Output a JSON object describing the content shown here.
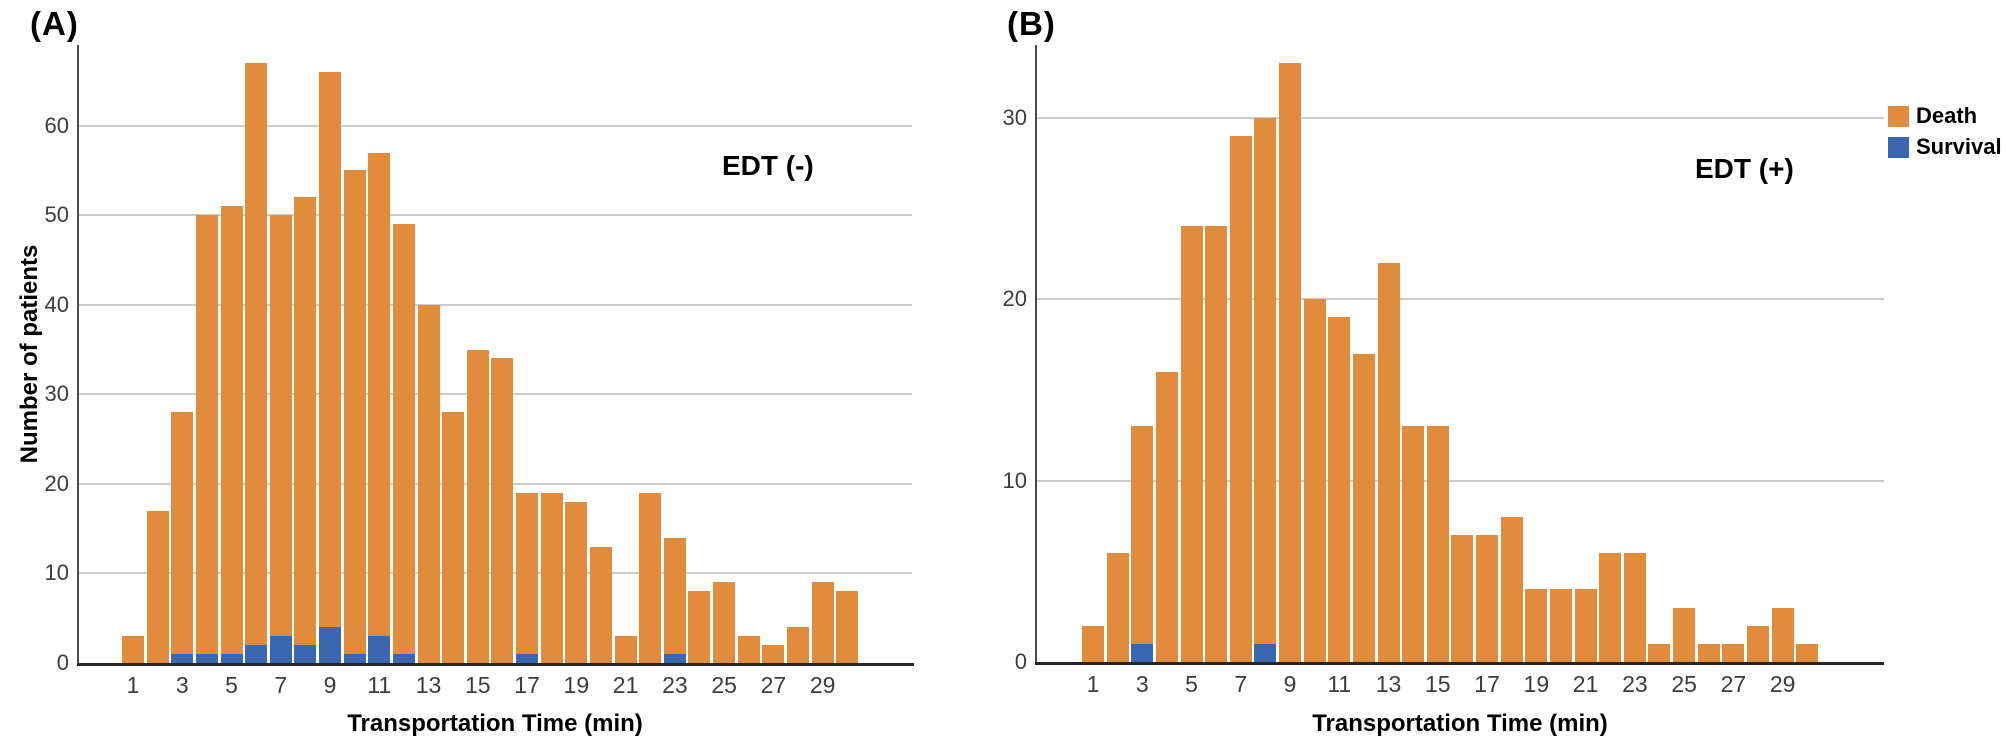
{
  "legend": {
    "items": [
      {
        "label": "Death",
        "color": "#E08C3C"
      },
      {
        "label": "Survival",
        "color": "#3B67B0"
      }
    ]
  },
  "chart_data": [
    {
      "type": "bar",
      "subtype": "stacked-histogram",
      "panel_label": "(A)",
      "annotation": "EDT (-)",
      "xlabel": "Transportation Time (min)",
      "ylabel": "Number of patients",
      "x": [
        1,
        2,
        3,
        4,
        5,
        6,
        7,
        8,
        9,
        10,
        11,
        12,
        13,
        14,
        15,
        16,
        17,
        18,
        19,
        20,
        21,
        22,
        23,
        24,
        25,
        26,
        27,
        28,
        29,
        30
      ],
      "series": [
        {
          "name": "Death",
          "color": "#E08C3C",
          "values": [
            3,
            17,
            27,
            49,
            50,
            65,
            47,
            50,
            62,
            54,
            54,
            48,
            40,
            28,
            35,
            34,
            18,
            19,
            18,
            13,
            3,
            19,
            13,
            8,
            9,
            3,
            2,
            4,
            9,
            8
          ]
        },
        {
          "name": "Survival",
          "color": "#3B67B0",
          "values": [
            0,
            0,
            1,
            1,
            1,
            2,
            3,
            2,
            4,
            1,
            3,
            1,
            0,
            0,
            0,
            0,
            1,
            0,
            0,
            0,
            0,
            0,
            1,
            0,
            0,
            0,
            0,
            0,
            0,
            0
          ]
        }
      ],
      "stacked_totals": [
        3,
        17,
        28,
        50,
        51,
        67,
        50,
        52,
        66,
        55,
        57,
        49,
        40,
        28,
        35,
        34,
        19,
        19,
        18,
        13,
        3,
        19,
        14,
        8,
        9,
        3,
        2,
        4,
        9,
        8
      ],
      "y_ticks": [
        0,
        10,
        20,
        30,
        40,
        50,
        60
      ],
      "x_tick_labels": [
        1,
        3,
        5,
        7,
        9,
        11,
        13,
        15,
        17,
        19,
        21,
        23,
        25,
        27,
        29
      ],
      "ylim": [
        0,
        69
      ],
      "grid": "horizontal",
      "legend_position": "none"
    },
    {
      "type": "bar",
      "subtype": "stacked-histogram",
      "panel_label": "(B)",
      "annotation": "EDT (+)",
      "xlabel": "Transportation Time (min)",
      "ylabel": "",
      "x": [
        1,
        2,
        3,
        4,
        5,
        6,
        7,
        8,
        9,
        10,
        11,
        12,
        13,
        14,
        15,
        16,
        17,
        18,
        19,
        20,
        21,
        22,
        23,
        24,
        25,
        26,
        27,
        28,
        29,
        30
      ],
      "series": [
        {
          "name": "Death",
          "color": "#E08C3C",
          "values": [
            2,
            6,
            12,
            16,
            24,
            24,
            29,
            29,
            33,
            20,
            19,
            17,
            22,
            13,
            13,
            7,
            7,
            8,
            4,
            4,
            4,
            6,
            6,
            1,
            3,
            1,
            1,
            2,
            3,
            1
          ]
        },
        {
          "name": "Survival",
          "color": "#3B67B0",
          "values": [
            0,
            0,
            1,
            0,
            0,
            0,
            0,
            1,
            0,
            0,
            0,
            0,
            0,
            0,
            0,
            0,
            0,
            0,
            0,
            0,
            0,
            0,
            0,
            0,
            0,
            0,
            0,
            0,
            0,
            0
          ]
        }
      ],
      "stacked_totals": [
        2,
        6,
        13,
        16,
        24,
        24,
        29,
        30,
        33,
        20,
        19,
        17,
        22,
        13,
        13,
        7,
        7,
        8,
        4,
        4,
        4,
        6,
        6,
        1,
        3,
        1,
        1,
        2,
        3,
        1
      ],
      "y_ticks": [
        0,
        10,
        20,
        30
      ],
      "x_tick_labels": [
        1,
        3,
        5,
        7,
        9,
        11,
        13,
        15,
        17,
        19,
        21,
        23,
        25,
        27,
        29
      ],
      "ylim": [
        0,
        34
      ],
      "grid": "horizontal",
      "legend_position": "top-right-outside"
    }
  ]
}
